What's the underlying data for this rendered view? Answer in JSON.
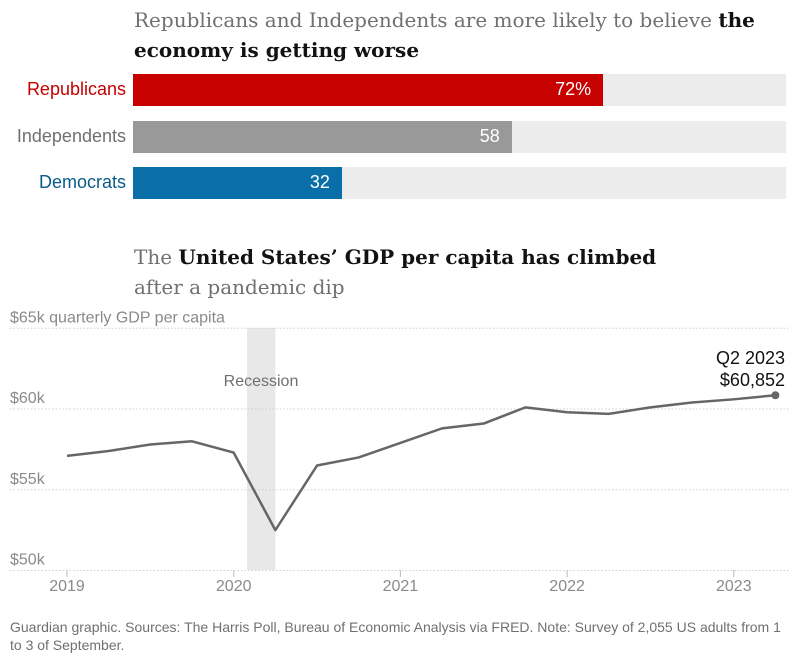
{
  "chart_data": [
    {
      "type": "bar",
      "title_plain": "Republicans and Independents are more likely to believe ",
      "title_bold": "the economy is getting worse",
      "categories": [
        "Republicans",
        "Independents",
        "Democrats"
      ],
      "values": [
        72,
        58,
        32
      ],
      "value_labels": [
        "72%",
        "58",
        "32"
      ],
      "colors": [
        "#c70000",
        "#999999",
        "#0a6fa8"
      ],
      "label_colors": [
        "#c70000",
        "#707070",
        "#0a5c88"
      ],
      "xlim": [
        0,
        100
      ]
    },
    {
      "type": "line",
      "title_plain1": "The ",
      "title_bold": "United States’ GDP per capita has climbed",
      "title_plain2": "after a pandemic dip",
      "ylabel": "quarterly GDP per capita",
      "yticks": [
        "$65k",
        "$60k",
        "$55k",
        "$50k"
      ],
      "ytick_values": [
        65,
        60,
        55,
        50
      ],
      "ylim": [
        50,
        65
      ],
      "xticks": [
        "2019",
        "2020",
        "2021",
        "2022",
        "2023"
      ],
      "x": [
        "2019 Q1",
        "2019 Q2",
        "2019 Q3",
        "2019 Q4",
        "2020 Q1",
        "2020 Q2",
        "2020 Q3",
        "2020 Q4",
        "2021 Q1",
        "2021 Q2",
        "2021 Q3",
        "2021 Q4",
        "2022 Q1",
        "2022 Q2",
        "2022 Q3",
        "2022 Q4",
        "2023 Q1",
        "2023 Q2"
      ],
      "values": [
        57.1,
        57.4,
        57.8,
        58.0,
        57.3,
        52.5,
        56.5,
        57.0,
        57.9,
        58.8,
        59.1,
        60.1,
        59.8,
        59.7,
        60.1,
        60.4,
        60.6,
        60.852
      ],
      "recession": {
        "label": "Recession",
        "start": 2020.08,
        "end": 2020.25
      },
      "annotation": {
        "line1": "Q2 2023",
        "line2": "$60,852"
      },
      "color": "#666666",
      "grid": true
    }
  ],
  "footer": "Guardian graphic. Sources: The Harris Poll, Bureau of Economic Analysis via FRED. Note: Survey of 2,055 US adults from 1 to 3 of September."
}
